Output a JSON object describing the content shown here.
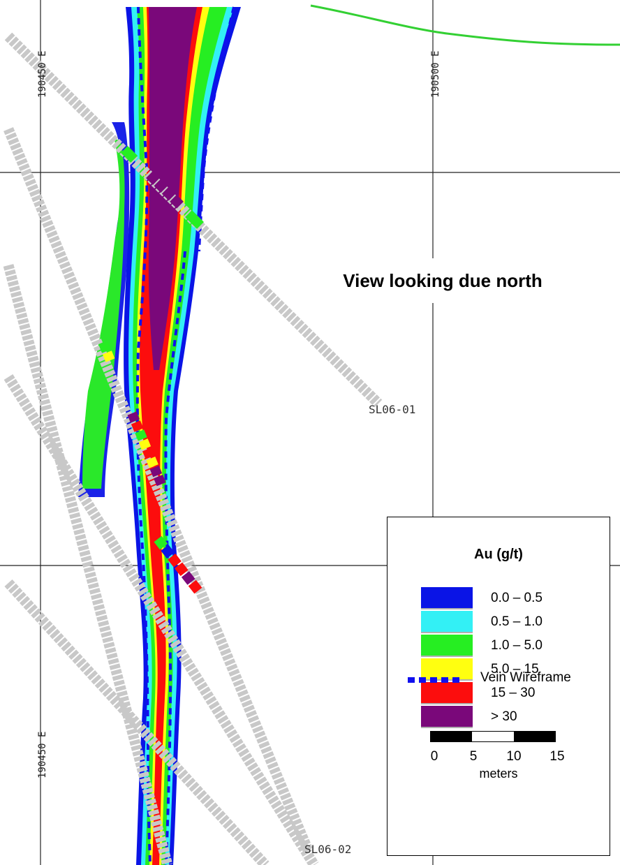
{
  "map": {
    "title": "View looking due north",
    "easting_labels": [
      {
        "id": "e1",
        "text": "190450 E"
      },
      {
        "id": "e2",
        "text": "190500 E"
      },
      {
        "id": "e3",
        "text": "190450 E"
      }
    ],
    "drill_holes": [
      {
        "id": "hole-1",
        "label": "SL06-01"
      },
      {
        "id": "hole-2",
        "label": "SL06-02"
      }
    ]
  },
  "legend": {
    "title": "Au (g/t)",
    "grades": [
      {
        "range": "0.0 – 0.5",
        "color": "#0a14e6"
      },
      {
        "range": "0.5 – 1.0",
        "color": "#33f0f5"
      },
      {
        "range": "1.0 – 5.0",
        "color": "#26ee22"
      },
      {
        "range": "5.0 – 15",
        "color": "#ffff10"
      },
      {
        "range": "15 – 30",
        "color": "#fc0d0d"
      },
      {
        "range": "> 30",
        "color": "#7a087a"
      }
    ],
    "wireframe_label": "Vein Wireframe",
    "wireframe_color": "#1010ee",
    "scale": {
      "ticks": [
        "0",
        "5",
        "10",
        "15"
      ],
      "unit": "meters"
    }
  },
  "colors": {
    "topo_line": "#33d033",
    "grid_line": "#222222",
    "hole_fill": "#c8c8c8"
  }
}
